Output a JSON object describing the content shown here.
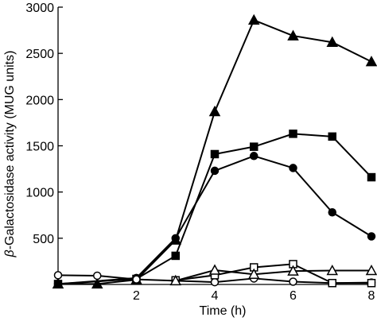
{
  "chart_data": {
    "type": "line",
    "xlabel": "Time (h)",
    "ylabel_prefix": "β",
    "ylabel_rest": "-Galactosidase activity (MUG units)",
    "xlim": [
      0,
      8
    ],
    "ylim": [
      0,
      3000
    ],
    "xticks": [
      2,
      4,
      6,
      8
    ],
    "yticks": [
      500,
      1000,
      1500,
      2000,
      2500,
      3000
    ],
    "grid": false,
    "legend": "none",
    "series": [
      {
        "marker": "filled-triangle",
        "connected": true,
        "x": [
          0,
          1,
          2,
          3,
          4,
          5,
          6,
          7,
          8
        ],
        "y": [
          5,
          5,
          50,
          480,
          1870,
          2860,
          2690,
          2620,
          2410
        ]
      },
      {
        "marker": "filled-square",
        "connected": true,
        "x": [
          0,
          2,
          3,
          4,
          5,
          6,
          7,
          8
        ],
        "y": [
          5,
          60,
          310,
          1410,
          1490,
          1630,
          1600,
          1160
        ]
      },
      {
        "marker": "filled-circle",
        "connected": true,
        "x": [
          0,
          2,
          3,
          4,
          5,
          6,
          7,
          8
        ],
        "y": [
          5,
          70,
          500,
          1230,
          1390,
          1260,
          780,
          520
        ]
      },
      {
        "marker": "open-circle",
        "connected": true,
        "x": [
          0,
          1,
          2,
          3,
          4,
          5,
          6,
          7,
          8
        ],
        "y": [
          100,
          95,
          55,
          40,
          25,
          65,
          30,
          15,
          20
        ]
      },
      {
        "marker": "open-square",
        "connected": true,
        "x": [
          3,
          4,
          5,
          6,
          7,
          8
        ],
        "y": [
          45,
          100,
          185,
          220,
          15,
          15
        ]
      },
      {
        "marker": "open-triangle",
        "connected": true,
        "x": [
          3,
          4,
          5,
          6,
          7,
          8
        ],
        "y": [
          40,
          155,
          110,
          145,
          150,
          150
        ]
      }
    ]
  }
}
